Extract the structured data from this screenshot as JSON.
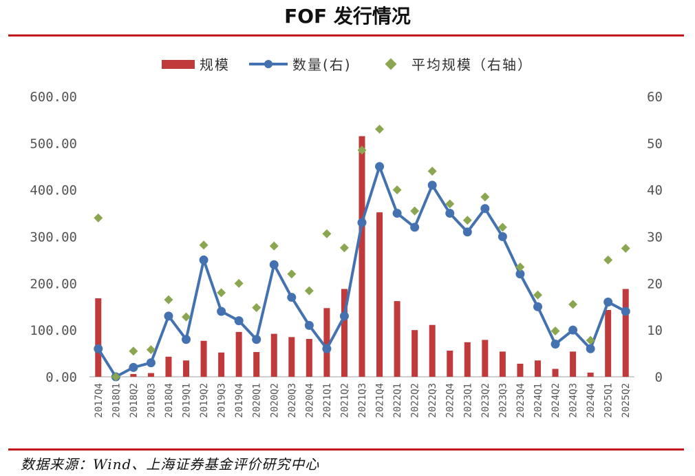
{
  "title": "FOF 发行情况",
  "source": "数据来源：Wind、上海证券基金评价研究中心",
  "colors": {
    "bar": "#c0393b",
    "line": "#4472b0",
    "diamond": "#8ba650",
    "rule": "#c0161b"
  },
  "chart_data": {
    "type": "bar",
    "categories": [
      "2017Q4",
      "2018Q1",
      "2018Q2",
      "2018Q3",
      "2018Q4",
      "2019Q1",
      "2019Q2",
      "2019Q3",
      "2019Q4",
      "2020Q1",
      "2020Q2",
      "2020Q3",
      "2020Q4",
      "2021Q1",
      "2021Q2",
      "2021Q3",
      "2021Q4",
      "2022Q1",
      "2022Q2",
      "2022Q3",
      "2022Q4",
      "2023Q1",
      "2023Q2",
      "2023Q3",
      "2023Q4",
      "2024Q1",
      "2024Q2",
      "2024Q3",
      "2024Q4",
      "2025Q1",
      "2025Q2"
    ],
    "series": [
      {
        "name": "规模",
        "type": "bar",
        "axis": "left",
        "values": [
          168,
          0,
          6,
          8,
          43,
          35,
          77,
          52,
          96,
          53,
          92,
          85,
          81,
          147,
          188,
          515,
          352,
          162,
          100,
          111,
          56,
          74,
          79,
          54,
          28,
          35,
          17,
          54,
          9,
          143,
          188
        ]
      },
      {
        "name": "数量(右)",
        "type": "line",
        "axis": "right",
        "values": [
          6,
          0,
          2,
          3,
          13,
          8,
          25,
          14,
          12,
          8,
          24,
          17,
          11,
          6,
          13,
          33,
          45,
          35,
          32,
          41,
          35,
          31,
          36,
          30,
          22,
          15,
          7,
          10,
          6,
          16,
          14
        ]
      },
      {
        "name": "平均规模（右轴）",
        "type": "scatter",
        "axis": "right",
        "values": [
          34,
          0,
          5.5,
          5.8,
          16.5,
          12.8,
          28.2,
          18,
          20,
          14.8,
          28,
          22,
          18.4,
          30.6,
          27.6,
          48.5,
          53,
          40,
          35.5,
          44,
          37,
          33.5,
          38.5,
          32,
          23.5,
          17.5,
          9.8,
          15.5,
          7.8,
          25,
          27.5
        ]
      }
    ],
    "y_left": {
      "ylim": [
        0,
        600
      ],
      "ticks": [
        "0.00",
        "100.00",
        "200.00",
        "300.00",
        "400.00",
        "500.00",
        "600.00"
      ]
    },
    "y_right": {
      "ylim": [
        0,
        60
      ],
      "ticks": [
        "0",
        "10",
        "20",
        "30",
        "40",
        "50",
        "60"
      ]
    },
    "legend_position": "top",
    "grid": false
  }
}
